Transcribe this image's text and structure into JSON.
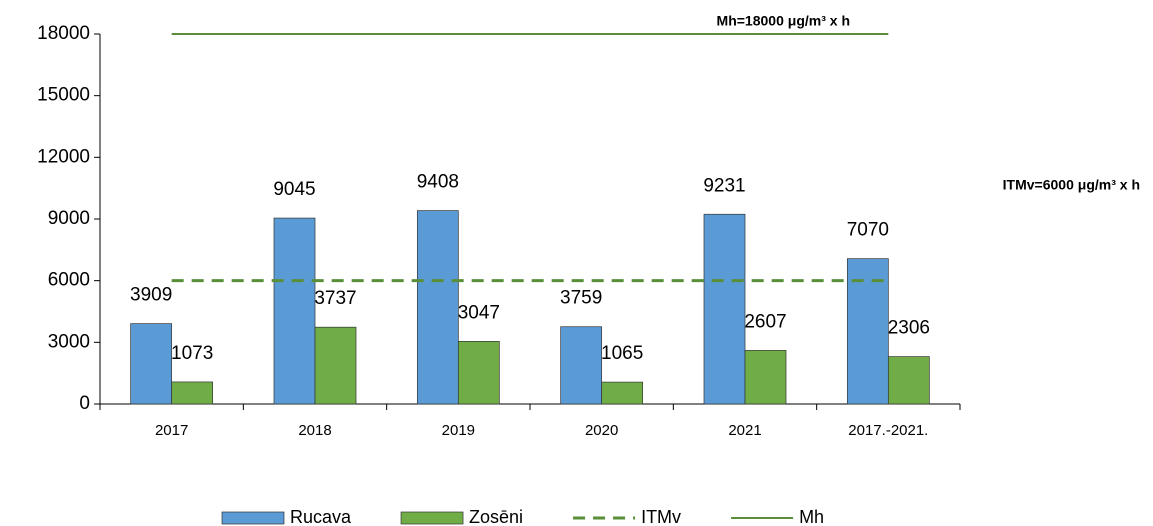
{
  "chart_data": {
    "type": "bar",
    "categories": [
      "2017",
      "2018",
      "2019",
      "2020",
      "2021",
      "2017.-2021."
    ],
    "series": [
      {
        "name": "Rucava",
        "color": "#5b9bd5",
        "values": [
          3909,
          9045,
          9408,
          3759,
          9231,
          7070
        ]
      },
      {
        "name": "Zosēni",
        "color": "#70ad47",
        "values": [
          1073,
          3737,
          3047,
          1065,
          2607,
          2306
        ]
      }
    ],
    "reference_lines": [
      {
        "name": "ITMv",
        "value": 6000,
        "color": "#5a8f3a",
        "style": "dashed",
        "annotation": "ITMv=6000 μg/m³ x h"
      },
      {
        "name": "Mh",
        "value": 18000,
        "color": "#5a8f3a",
        "style": "solid",
        "annotation": "Mh=18000 μg/m³ x h"
      }
    ],
    "ylim": [
      0,
      18000
    ],
    "yticks": [
      0,
      3000,
      6000,
      9000,
      12000,
      15000,
      18000
    ],
    "grid": false,
    "legend": "bottom"
  }
}
